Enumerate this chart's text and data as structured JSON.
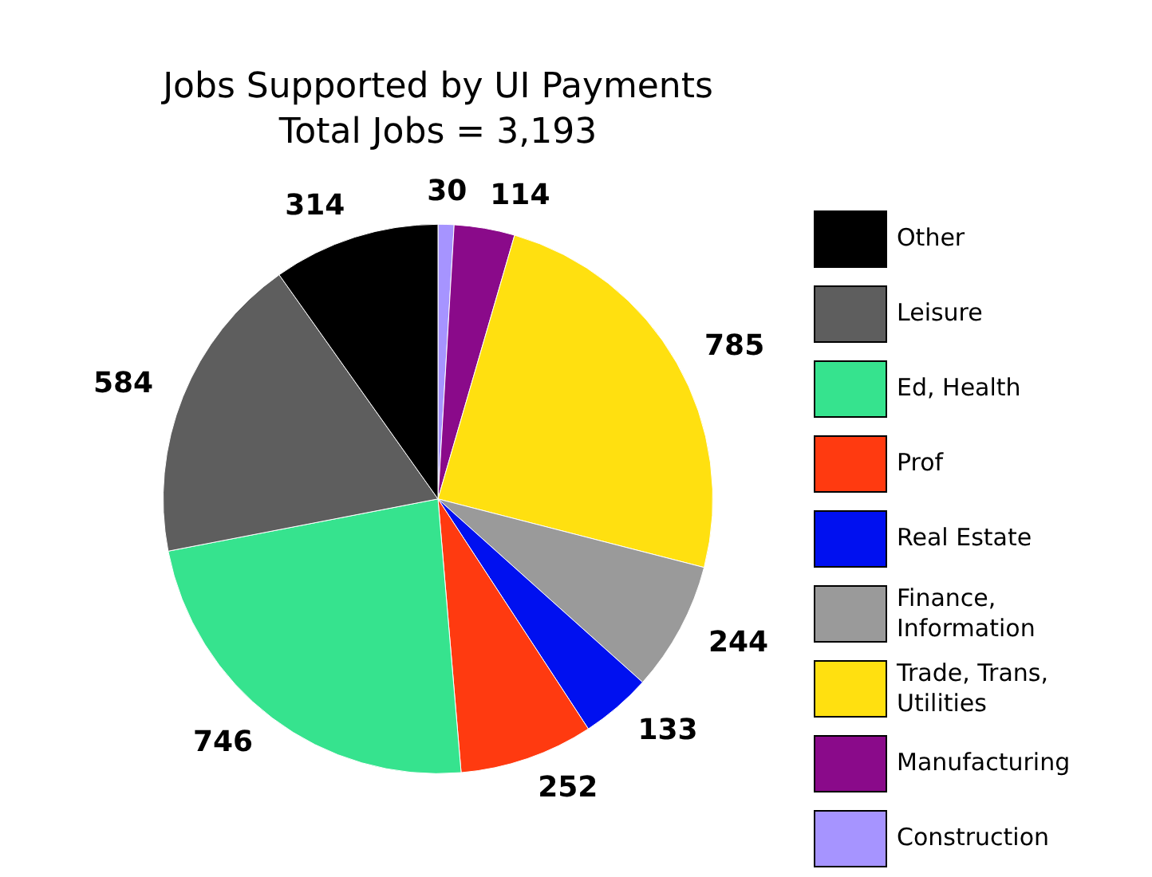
{
  "chart_data": {
    "type": "pie",
    "title": "Jobs Supported by UI Payments",
    "subtitle": "Total Jobs = 3,193",
    "categories": [
      "Construction",
      "Manufacturing",
      "Trade, Trans, Utilities",
      "Finance, Information",
      "Real Estate",
      "Prof",
      "Ed, Health",
      "Leisure",
      "Other"
    ],
    "values": [
      30,
      114,
      785,
      244,
      133,
      252,
      746,
      584,
      314
    ],
    "colors": [
      "#a694ff",
      "#8a0a8a",
      "#ffe010",
      "#9a9a9a",
      "#0010f0",
      "#ff3a10",
      "#36e38e",
      "#5e5e5e",
      "#000000"
    ],
    "data_labels": true,
    "legend": "right"
  }
}
